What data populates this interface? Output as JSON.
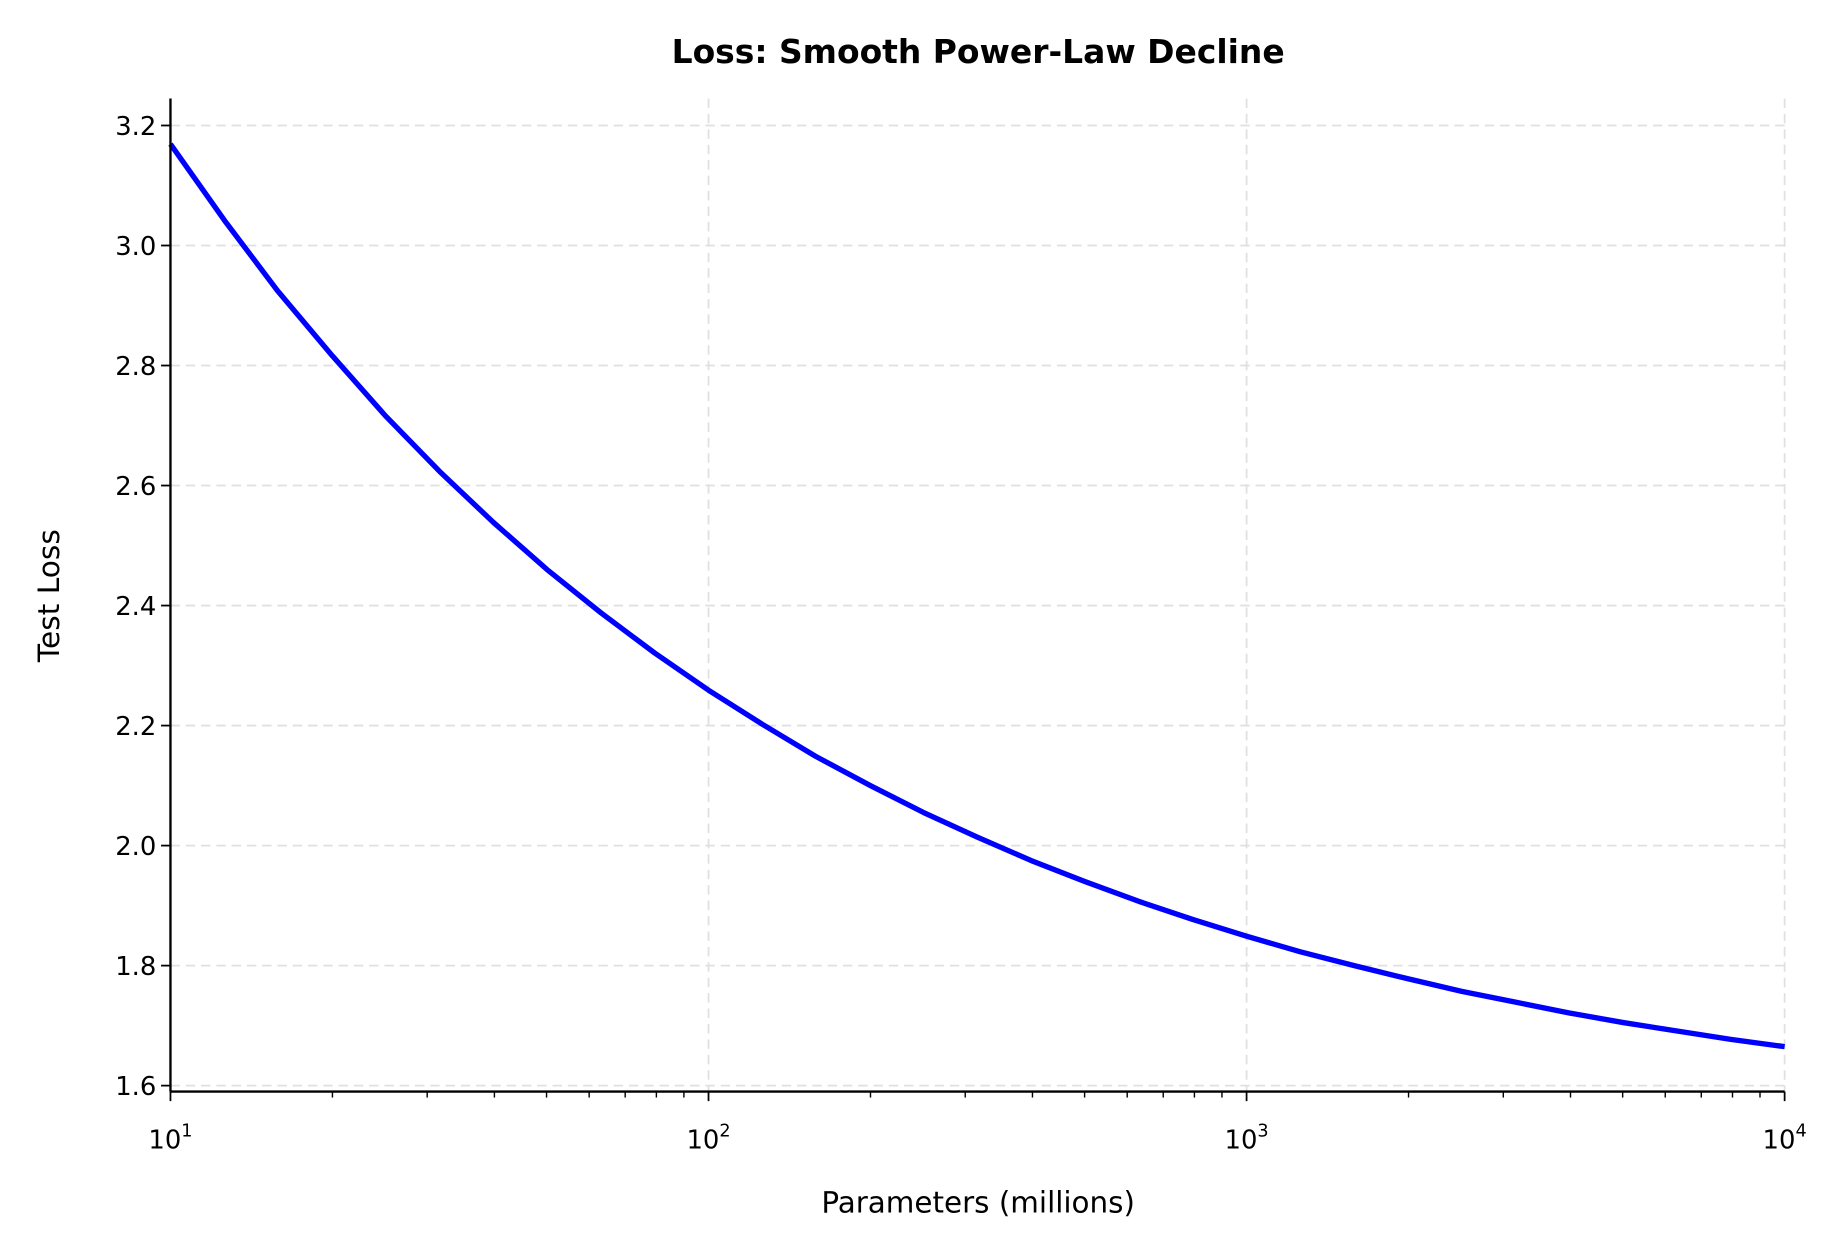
{
  "chart_data": {
    "type": "line",
    "title": "Loss: Smooth Power-Law Decline",
    "xlabel": "Parameters (millions)",
    "ylabel": "Test Loss",
    "xscale": "log",
    "xlim": [
      10,
      10000
    ],
    "ylim": [
      1.59,
      3.245
    ],
    "grid": true,
    "line_color": "#0000ff",
    "x_ticks": [
      {
        "base": "10",
        "exp": "1",
        "value": 10
      },
      {
        "base": "10",
        "exp": "2",
        "value": 100
      },
      {
        "base": "10",
        "exp": "3",
        "value": 1000
      },
      {
        "base": "10",
        "exp": "4",
        "value": 10000
      }
    ],
    "y_ticks": [
      "1.6",
      "1.8",
      "2.0",
      "2.2",
      "2.4",
      "2.6",
      "2.8",
      "3.0",
      "3.2"
    ],
    "series": [
      {
        "x": [
          10,
          12.6,
          15.8,
          20,
          25.1,
          31.6,
          39.8,
          50.1,
          63.1,
          79.4,
          100,
          126,
          158,
          200,
          251,
          316,
          398,
          501,
          631,
          794,
          1000,
          1259,
          1585,
          1995,
          2512,
          3162,
          3981,
          5012,
          6310,
          7943,
          10000
        ],
        "y": [
          3.169,
          3.042,
          2.925,
          2.816,
          2.716,
          2.624,
          2.539,
          2.46,
          2.388,
          2.321,
          2.259,
          2.202,
          2.149,
          2.1,
          2.055,
          2.014,
          1.975,
          1.94,
          1.907,
          1.877,
          1.849,
          1.823,
          1.8,
          1.778,
          1.757,
          1.739,
          1.721,
          1.705,
          1.691,
          1.677,
          1.665
        ]
      }
    ]
  }
}
